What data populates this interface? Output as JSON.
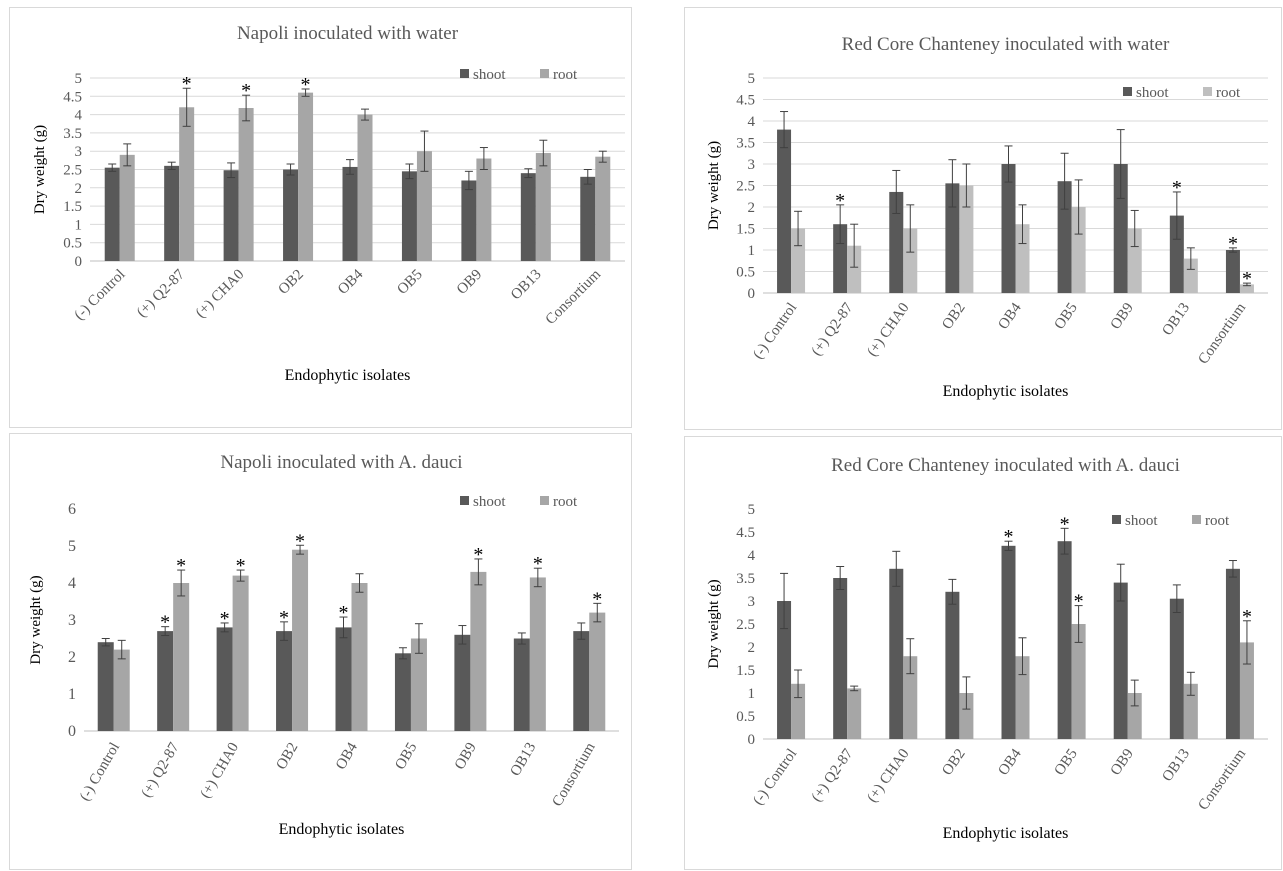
{
  "chart_data": [
    {
      "type": "bar",
      "title": "Napoli inoculated with water",
      "xlabel": "Endophytic isolates",
      "ylabel": "Dry weight (g)",
      "ylim": [
        0,
        5
      ],
      "yticks": [
        "0",
        "0.5",
        "1",
        "1.5",
        "2",
        "2.5",
        "3",
        "3.5",
        "4",
        "4.5",
        "5"
      ],
      "grid": true,
      "legend_position": "top-right",
      "categories": [
        "(-) Control",
        "(+) Q2-87",
        "(+) CHA0",
        "OB2",
        "OB4",
        "OB5",
        "OB9",
        "OB13",
        "Consortium"
      ],
      "series": [
        {
          "name": "shoot",
          "color": "#595959",
          "values": [
            2.55,
            2.6,
            2.48,
            2.5,
            2.57,
            2.45,
            2.2,
            2.4,
            2.3
          ],
          "errors": [
            0.1,
            0.1,
            0.2,
            0.15,
            0.2,
            0.2,
            0.25,
            0.12,
            0.2
          ],
          "significance": [
            "",
            "",
            "",
            "",
            "",
            "",
            "",
            "",
            ""
          ]
        },
        {
          "name": "root",
          "color": "#a6a6a6",
          "values": [
            2.9,
            4.2,
            4.18,
            4.6,
            4.0,
            3.0,
            2.8,
            2.95,
            2.85
          ],
          "errors": [
            0.3,
            0.52,
            0.35,
            0.1,
            0.15,
            0.55,
            0.3,
            0.35,
            0.15
          ],
          "significance": [
            "",
            "*",
            "*",
            "*",
            "",
            "",
            "",
            "",
            ""
          ]
        }
      ]
    },
    {
      "type": "bar",
      "title": "Red Core Chanteney inoculated with water",
      "xlabel": "Endophytic isolates",
      "ylabel": "Dry weight (g)",
      "ylim": [
        0,
        5
      ],
      "yticks": [
        "0",
        "0.5",
        "1",
        "1.5",
        "2",
        "2.5",
        "3",
        "3.5",
        "4",
        "4.5",
        "5"
      ],
      "grid": true,
      "legend_position": "top-right",
      "categories": [
        "(-) Control",
        "(+) Q2-87",
        "(+) CHA0",
        "OB2",
        "OB4",
        "OB5",
        "OB9",
        "OB13",
        "Consortium"
      ],
      "series": [
        {
          "name": "shoot",
          "color": "#595959",
          "values": [
            3.8,
            1.6,
            2.35,
            2.55,
            3.0,
            2.6,
            3.0,
            1.8,
            1.0
          ],
          "errors": [
            0.42,
            0.45,
            0.5,
            0.55,
            0.42,
            0.65,
            0.8,
            0.55,
            0.05
          ],
          "significance": [
            "",
            "*",
            "",
            "",
            "",
            "",
            "",
            "*",
            "*"
          ]
        },
        {
          "name": "root",
          "color": "#bfbfbf",
          "values": [
            1.5,
            1.1,
            1.5,
            2.5,
            1.6,
            2.0,
            1.5,
            0.8,
            0.2
          ],
          "errors": [
            0.4,
            0.5,
            0.55,
            0.5,
            0.45,
            0.63,
            0.42,
            0.25,
            0.03
          ],
          "significance": [
            "",
            "",
            "",
            "",
            "",
            "",
            "",
            "",
            "*"
          ]
        }
      ]
    },
    {
      "type": "bar",
      "title": "Napoli inoculated with A. dauci",
      "xlabel": "Endophytic isolates",
      "ylabel": "Dry weight (g)",
      "ylim": [
        0,
        6
      ],
      "yticks": [
        "0",
        "1",
        "2",
        "3",
        "4",
        "5",
        "6"
      ],
      "grid": false,
      "legend_position": "top-right",
      "categories": [
        "(-) Control",
        "(+) Q2-87",
        "(+) CHA0",
        "OB2",
        "OB4",
        "OB5",
        "OB9",
        "OB13",
        "Consortium"
      ],
      "series": [
        {
          "name": "shoot",
          "color": "#595959",
          "values": [
            2.4,
            2.7,
            2.8,
            2.7,
            2.8,
            2.1,
            2.6,
            2.5,
            2.7
          ],
          "errors": [
            0.1,
            0.12,
            0.12,
            0.25,
            0.28,
            0.15,
            0.25,
            0.15,
            0.22
          ],
          "significance": [
            "",
            "*",
            "*",
            "*",
            "*",
            "",
            "",
            "",
            ""
          ]
        },
        {
          "name": "root",
          "color": "#a6a6a6",
          "values": [
            2.2,
            4.0,
            4.2,
            4.9,
            4.0,
            2.5,
            4.3,
            4.15,
            3.2
          ],
          "errors": [
            0.25,
            0.35,
            0.15,
            0.12,
            0.25,
            0.4,
            0.35,
            0.25,
            0.25
          ],
          "significance": [
            "",
            "*",
            "*",
            "*",
            "",
            "",
            "*",
            "*",
            "*"
          ]
        }
      ]
    },
    {
      "type": "bar",
      "title": "Red Core Chanteney inoculated with A. dauci",
      "xlabel": "Endophytic isolates",
      "ylabel": "Dry weight (g)",
      "ylim": [
        0,
        5
      ],
      "yticks": [
        "0",
        "0.5",
        "1",
        "1.5",
        "2",
        "2.5",
        "3",
        "3.5",
        "4",
        "4.5",
        "5"
      ],
      "grid": false,
      "legend_position": "top-right",
      "categories": [
        "(-) Control",
        "(+) Q2-87",
        "(+) CHA0",
        "OB2",
        "OB4",
        "OB5",
        "OB9",
        "OB13",
        "Consortium"
      ],
      "series": [
        {
          "name": "shoot",
          "color": "#595959",
          "values": [
            3.0,
            3.5,
            3.7,
            3.2,
            4.2,
            4.3,
            3.4,
            3.05,
            3.7
          ],
          "errors": [
            0.6,
            0.25,
            0.38,
            0.27,
            0.1,
            0.28,
            0.4,
            0.3,
            0.18
          ],
          "significance": [
            "",
            "",
            "",
            "",
            "*",
            "*",
            "",
            "",
            ""
          ]
        },
        {
          "name": "root",
          "color": "#a6a6a6",
          "values": [
            1.2,
            1.1,
            1.8,
            1.0,
            1.8,
            2.5,
            1.0,
            1.2,
            2.1
          ],
          "errors": [
            0.3,
            0.05,
            0.38,
            0.35,
            0.4,
            0.4,
            0.28,
            0.25,
            0.47
          ],
          "significance": [
            "",
            "",
            "",
            "",
            "",
            "*",
            "",
            "",
            "*"
          ]
        }
      ]
    }
  ]
}
